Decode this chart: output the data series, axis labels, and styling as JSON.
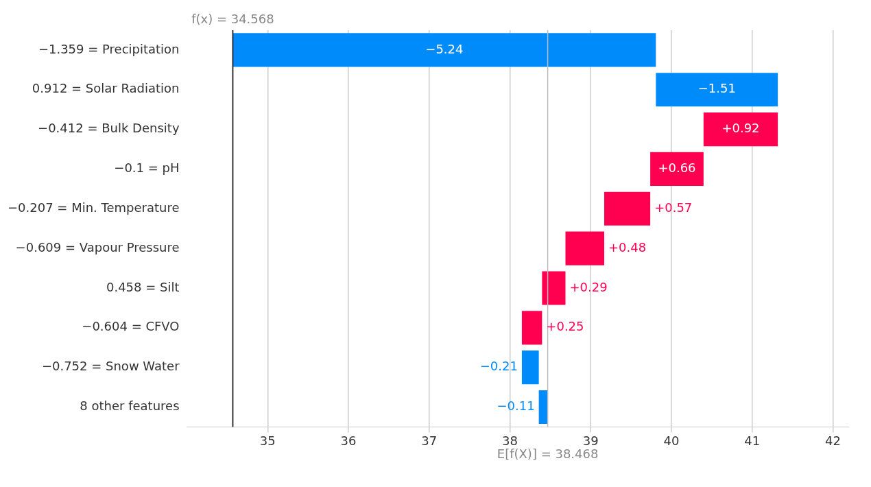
{
  "chart_data": {
    "type": "bar",
    "orientation": "horizontal",
    "categories": [
      "−1.359 = Precipitation",
      "0.912 = Solar Radiation",
      "−0.412 = Bulk Density",
      "−0.1 = pH",
      "−0.207 = Min. Temperature",
      "−0.609 = Vapour Pressure",
      "0.458 = Silt",
      "−0.604 = CFVO",
      "−0.752 = Snow Water",
      "8 other features"
    ],
    "values": [
      -5.24,
      -1.51,
      0.92,
      0.66,
      0.57,
      0.48,
      0.29,
      0.25,
      -0.21,
      -0.11
    ],
    "base": [
      39.808,
      41.318,
      40.398,
      39.738,
      39.168,
      38.688,
      38.398,
      38.148,
      38.358,
      38.468
    ],
    "colors": [
      "#008bfb",
      "#008bfb",
      "#ff0051",
      "#ff0051",
      "#ff0051",
      "#ff0051",
      "#ff0051",
      "#ff0051",
      "#008bfb",
      "#008bfb"
    ],
    "value_labels": [
      "−5.24",
      "−1.51",
      "+0.92",
      "+0.66",
      "+0.57",
      "+0.48",
      "+0.29",
      "+0.25",
      "−0.21",
      "−0.11"
    ],
    "xlim": [
      34,
      42.2
    ],
    "xticks": [
      35,
      36,
      37,
      38,
      39,
      40,
      41,
      42
    ],
    "grid": "x",
    "ref_lines": [
      {
        "axis": "x",
        "value": 34.568,
        "label": "f(x) = 34.568",
        "color": "#333333"
      },
      {
        "axis": "x",
        "value": 38.468,
        "label": "E[f(X)] = 38.468",
        "color": "#bbbbbb"
      }
    ]
  }
}
